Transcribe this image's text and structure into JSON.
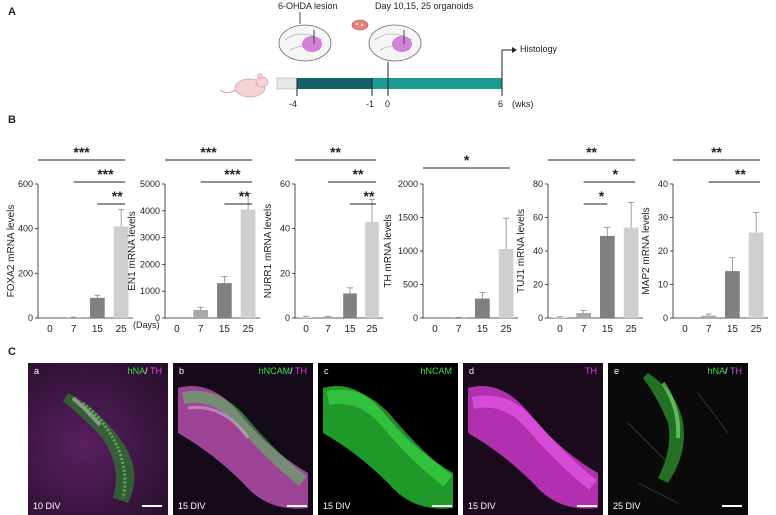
{
  "panels": {
    "a": "A",
    "b": "B",
    "c": "C"
  },
  "timeline": {
    "lesion_label": "6-OHDA lesion",
    "organoid_label": "Day 10,15, 25 organoids",
    "histology_label": "Histology",
    "ticks": [
      "-4",
      "-1",
      "0",
      "6"
    ],
    "unit": "(wks)",
    "colors": {
      "dark": "#17606a",
      "light": "#1d9a8f",
      "pre": "#e8e8e8"
    }
  },
  "chart_data": [
    {
      "type": "bar",
      "ylabel": "FOXA2 mRNA levels",
      "xlabel": "(Days)",
      "categories": [
        "0",
        "7",
        "15",
        "25"
      ],
      "values": [
        0,
        2,
        90,
        410
      ],
      "errors": [
        0,
        2,
        12,
        75
      ],
      "ylim": [
        0,
        600
      ],
      "yticks": [
        "0",
        "200",
        "400",
        "600"
      ],
      "significance": [
        {
          "from": 0,
          "to": 3,
          "label": "***"
        },
        {
          "from": 1,
          "to": 3,
          "label": "***"
        },
        {
          "from": 2,
          "to": 3,
          "label": "**"
        }
      ]
    },
    {
      "type": "bar",
      "ylabel": "EN1 mRNA levels",
      "categories": [
        "0",
        "7",
        "15",
        "25"
      ],
      "values": [
        0,
        300,
        1300,
        4050
      ],
      "errors": [
        0,
        100,
        250,
        600
      ],
      "ylim": [
        0,
        5000
      ],
      "yticks": [
        "0",
        "1000",
        "2000",
        "3000",
        "4000",
        "5000"
      ],
      "significance": [
        {
          "from": 0,
          "to": 3,
          "label": "***"
        },
        {
          "from": 1,
          "to": 3,
          "label": "***"
        },
        {
          "from": 2,
          "to": 3,
          "label": "**"
        }
      ]
    },
    {
      "type": "bar",
      "ylabel": "NURR1 mRNA levels",
      "categories": [
        "0",
        "7",
        "15",
        "25"
      ],
      "values": [
        0.5,
        0.5,
        11,
        43
      ],
      "errors": [
        0.3,
        0.3,
        2.5,
        10
      ],
      "ylim": [
        0,
        60
      ],
      "yticks": [
        "0",
        "20",
        "40",
        "60"
      ],
      "significance": [
        {
          "from": 0,
          "to": 3,
          "label": "**"
        },
        {
          "from": 1,
          "to": 3,
          "label": "**"
        },
        {
          "from": 2,
          "to": 3,
          "label": "**"
        }
      ]
    },
    {
      "type": "bar",
      "ylabel": "TH mRNA levels",
      "categories": [
        "0",
        "7",
        "15",
        "25"
      ],
      "values": [
        0,
        5,
        290,
        1030
      ],
      "errors": [
        0,
        5,
        90,
        460
      ],
      "ylim": [
        0,
        2000
      ],
      "yticks": [
        "0",
        "500",
        "1000",
        "1500",
        "2000"
      ],
      "significance": [
        {
          "from": 0,
          "to": 3,
          "label": "*"
        }
      ]
    },
    {
      "type": "bar",
      "ylabel": "TUJ1 mRNA levels",
      "categories": [
        "0",
        "7",
        "15",
        "25"
      ],
      "values": [
        0.5,
        3,
        49,
        54
      ],
      "errors": [
        0.3,
        1.5,
        5,
        15
      ],
      "ylim": [
        0,
        80
      ],
      "yticks": [
        "0",
        "20",
        "40",
        "60",
        "80"
      ],
      "significance": [
        {
          "from": 0,
          "to": 3,
          "label": "**"
        },
        {
          "from": 1,
          "to": 3,
          "label": "*"
        },
        {
          "from": 1,
          "to": 2,
          "label": "*"
        }
      ]
    },
    {
      "type": "bar",
      "ylabel": "MAP2 mRNA levels",
      "categories": [
        "0",
        "7",
        "15",
        "25"
      ],
      "values": [
        0,
        0.7,
        14,
        25.5
      ],
      "errors": [
        0,
        0.5,
        4,
        6
      ],
      "ylim": [
        0,
        40
      ],
      "yticks": [
        "0",
        "10",
        "20",
        "30",
        "40"
      ],
      "significance": [
        {
          "from": 0,
          "to": 3,
          "label": "**"
        },
        {
          "from": 1,
          "to": 3,
          "label": "**"
        }
      ]
    }
  ],
  "bar_colors": [
    "#d0d0d0",
    "#a8a8a8",
    "#808080",
    "#cfcfcf"
  ],
  "images": [
    {
      "corner": "a",
      "marker1": "hNA",
      "marker2": "TH",
      "div": "10 DIV"
    },
    {
      "corner": "b",
      "marker1": "hNCAM",
      "marker2": "TH",
      "div": "15 DIV"
    },
    {
      "corner": "c",
      "marker1": "hNCAM",
      "marker2": "",
      "div": "15 DIV"
    },
    {
      "corner": "d",
      "marker1": "",
      "marker2": "TH",
      "div": "15 DIV"
    },
    {
      "corner": "e",
      "marker1": "hNA",
      "marker2": "TH",
      "div": "25 DIV"
    }
  ],
  "marker_colors": {
    "green": "#3ddc4a",
    "magenta": "#e040e0"
  }
}
